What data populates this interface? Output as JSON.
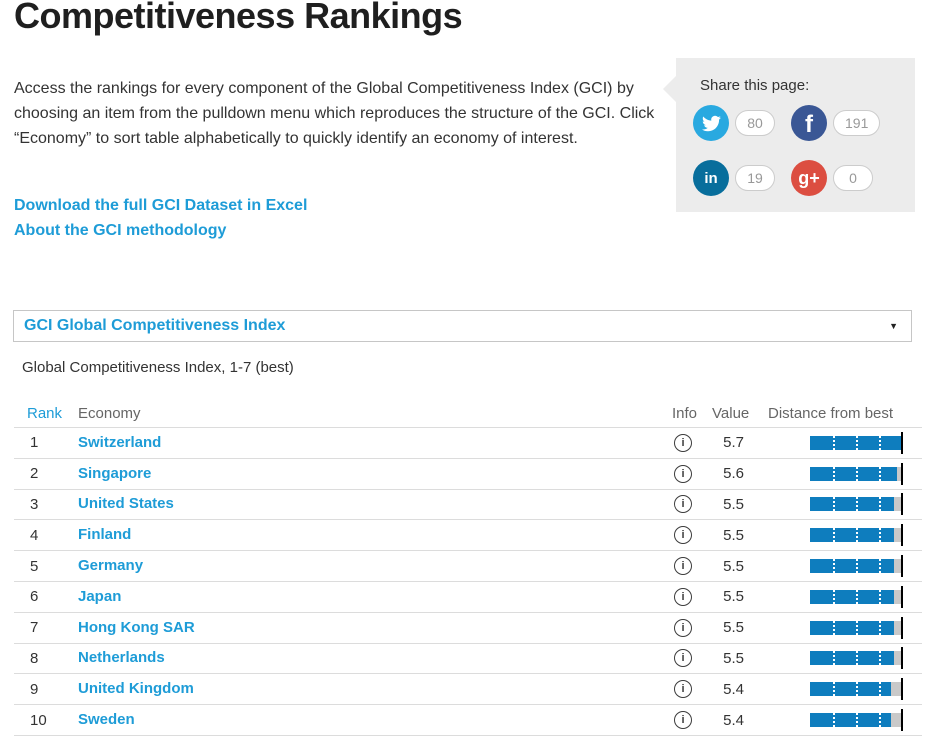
{
  "page": {
    "title": "Competitiveness Rankings",
    "intro": "Access the rankings for every component of the Global Competitiveness Index (GCI) by choosing an item from the pulldown menu which reproduces the structure of the GCI. Click “Economy” to sort table alphabetically to quickly identify an economy of interest.",
    "links": [
      {
        "label": "Download the full GCI Dataset in Excel"
      },
      {
        "label": "About the GCI methodology"
      }
    ]
  },
  "share": {
    "label": "Share this page:",
    "buttons": [
      {
        "network": "twitter",
        "count": "80",
        "color": "#29a9e0"
      },
      {
        "network": "facebook",
        "count": "191",
        "color": "#3a5795"
      },
      {
        "network": "linkedin",
        "count": "19",
        "color": "#086e9c"
      },
      {
        "network": "googleplus",
        "count": "0",
        "color": "#dc4e41"
      }
    ]
  },
  "selector": {
    "value": "GCI Global Competitiveness Index"
  },
  "caption": "Global Competitiveness Index, 1-7 (best)",
  "table": {
    "headers": {
      "rank": "Rank",
      "economy": "Economy",
      "info": "Info",
      "value": "Value",
      "distance": "Distance from best"
    },
    "rows": [
      {
        "rank": "1",
        "economy": "Switzerland",
        "value": "5.7",
        "fill_pct": 100
      },
      {
        "rank": "2",
        "economy": "Singapore",
        "value": "5.6",
        "fill_pct": 95
      },
      {
        "rank": "3",
        "economy": "United States",
        "value": "5.5",
        "fill_pct": 91
      },
      {
        "rank": "4",
        "economy": "Finland",
        "value": "5.5",
        "fill_pct": 91
      },
      {
        "rank": "5",
        "economy": "Germany",
        "value": "5.5",
        "fill_pct": 91
      },
      {
        "rank": "6",
        "economy": "Japan",
        "value": "5.5",
        "fill_pct": 91
      },
      {
        "rank": "7",
        "economy": "Hong Kong SAR",
        "value": "5.5",
        "fill_pct": 91
      },
      {
        "rank": "8",
        "economy": "Netherlands",
        "value": "5.5",
        "fill_pct": 91
      },
      {
        "rank": "9",
        "economy": "United Kingdom",
        "value": "5.4",
        "fill_pct": 88
      },
      {
        "rank": "10",
        "economy": "Sweden",
        "value": "5.4",
        "fill_pct": 88
      }
    ]
  },
  "icons": {
    "caret": "▼",
    "info": "i",
    "facebook": "f",
    "linkedin": "in",
    "googleplus": "g+"
  },
  "colors": {
    "accent_blue": "#1e9cd7",
    "bar_fill": "#0e7dbe",
    "bar_track": "#c9c9c9",
    "best_marker": "#000000",
    "share_box_bg": "#ececec",
    "row_border": "#dcdcdc"
  }
}
